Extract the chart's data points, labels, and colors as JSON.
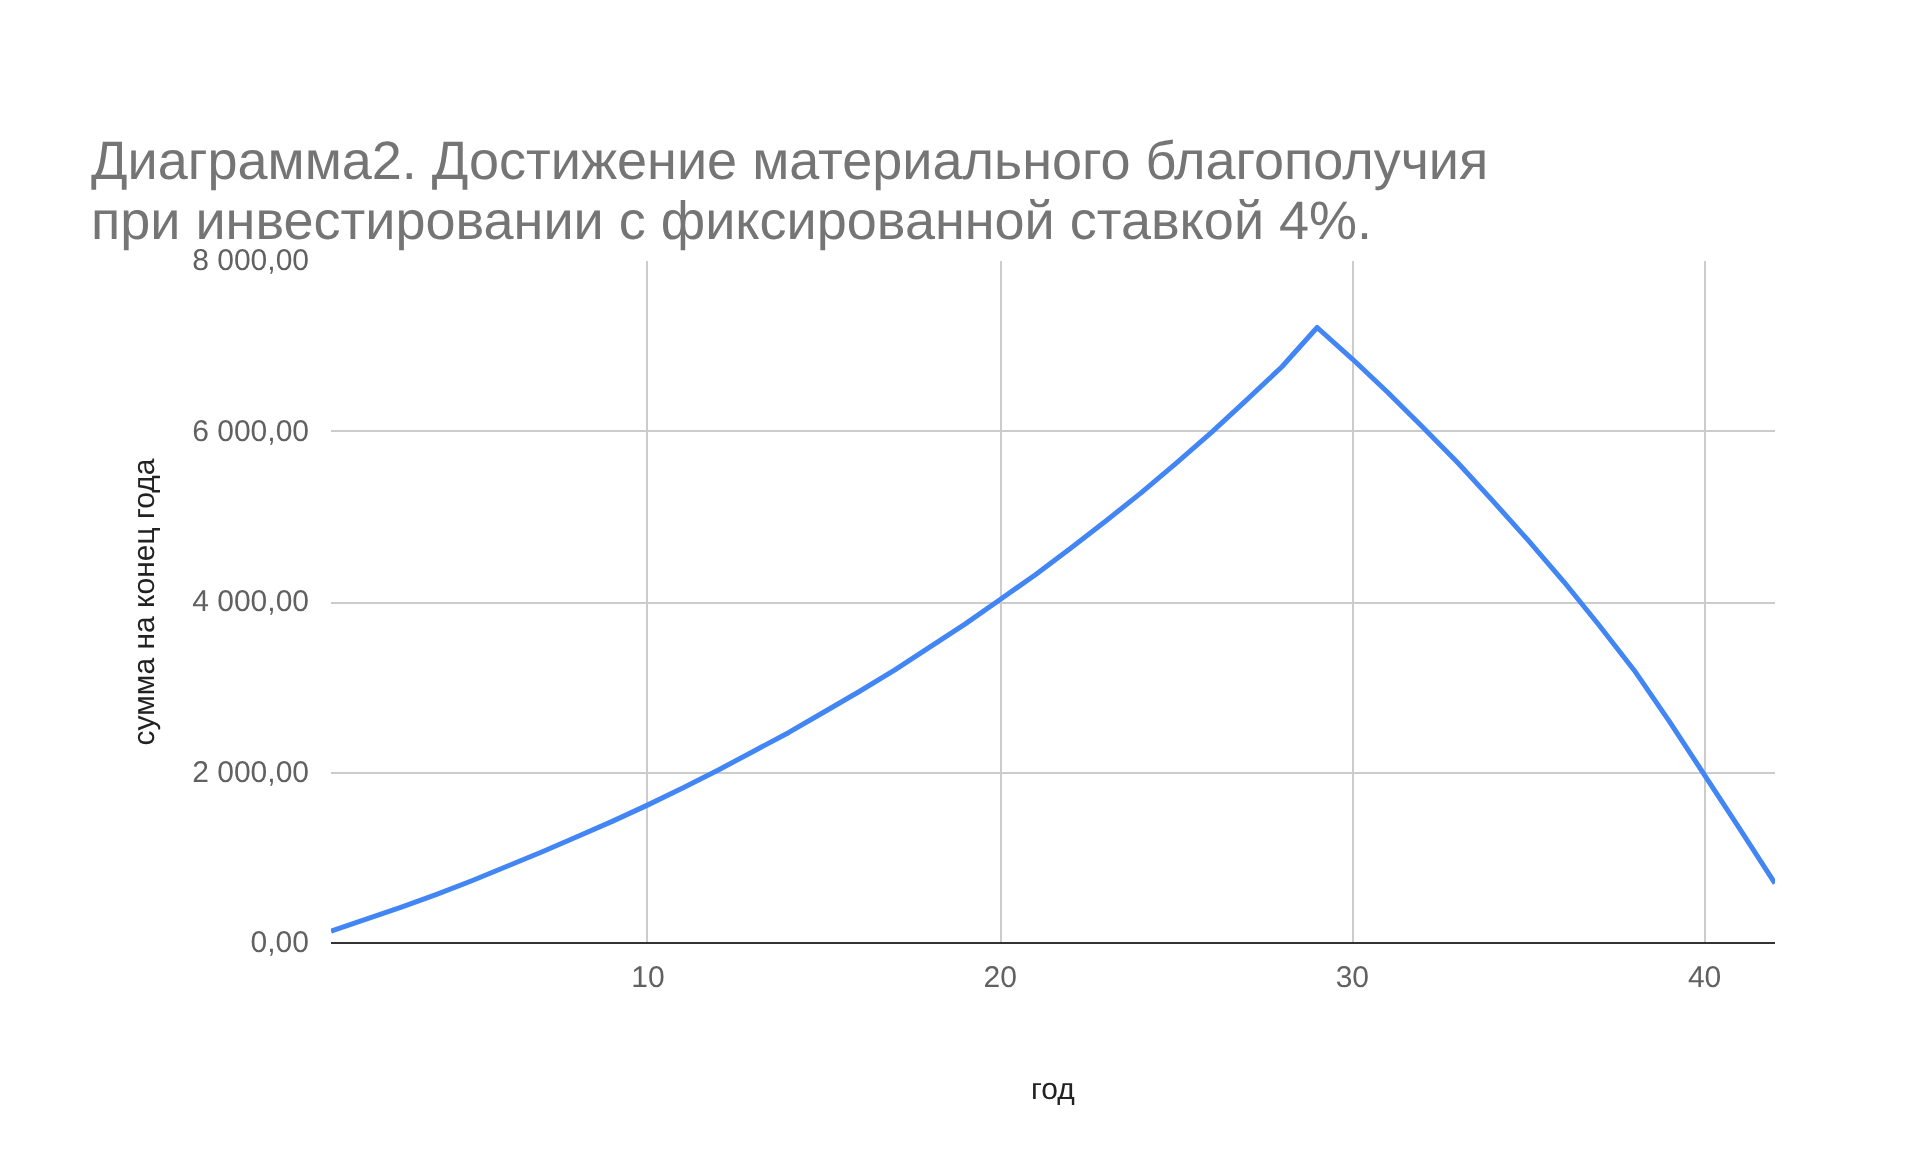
{
  "chart_data": {
    "type": "line",
    "title": "Диаграмма2. Достижение материального благополучия\nпри инвестировании с фиксированной ставкой 4%.",
    "xlabel": "год",
    "ylabel": "сумма на конец года",
    "x": [
      1,
      2,
      3,
      4,
      5,
      6,
      7,
      8,
      9,
      10,
      11,
      12,
      13,
      14,
      15,
      16,
      17,
      18,
      19,
      20,
      21,
      22,
      23,
      24,
      25,
      26,
      27,
      28,
      29,
      30,
      31,
      32,
      33,
      34,
      35,
      36,
      37,
      38,
      39,
      40,
      41,
      42
    ],
    "series": [
      {
        "color": "#4285f4",
        "values": [
          140,
          280,
          420,
          570,
          730,
          900,
          1070,
          1250,
          1430,
          1620,
          1820,
          2030,
          2250,
          2470,
          2710,
          2950,
          3200,
          3470,
          3740,
          4030,
          4320,
          4630,
          4950,
          5280,
          5630,
          5990,
          6370,
          6760,
          7220,
          6850,
          6460,
          6050,
          5630,
          5180,
          4720,
          4240,
          3730,
          3200,
          2600,
          1970,
          1340,
          700
        ]
      }
    ],
    "xlim": [
      1,
      42
    ],
    "xticks": [
      10,
      20,
      30,
      40
    ],
    "ylim": [
      0,
      8000
    ],
    "yticks": [
      {
        "value": 0,
        "label": "0,00"
      },
      {
        "value": 2000,
        "label": "2 000,00"
      },
      {
        "value": 4000,
        "label": "4 000,00"
      },
      {
        "value": 6000,
        "label": "6 000,00"
      },
      {
        "value": 8000,
        "label": "8 000,00"
      }
    ],
    "grid": true,
    "marker": "none",
    "line_style": "solid"
  }
}
